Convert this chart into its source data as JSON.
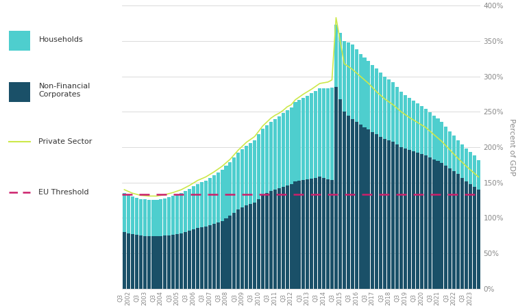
{
  "nfc_color": "#1a5068",
  "households_color": "#4ecece",
  "private_sector_color": "#cce84a",
  "eu_threshold_color": "#cc1f6a",
  "eu_threshold": 133,
  "ylabel": "Percent of GDP",
  "ylim": [
    0,
    400
  ],
  "yticks": [
    0,
    50,
    100,
    150,
    200,
    250,
    300,
    350,
    400
  ],
  "background_color": "#ffffff",
  "grid_color": "#cccccc",
  "nfc_kp_idx": [
    0,
    2,
    4,
    6,
    8,
    10,
    12,
    14,
    16,
    18,
    20,
    22,
    24,
    26,
    28,
    30,
    32,
    34,
    36,
    37,
    38,
    39,
    40,
    41,
    42,
    44,
    46,
    48,
    50,
    51,
    52,
    54,
    56,
    58,
    60,
    62,
    64,
    66,
    68,
    70,
    72,
    74,
    76,
    78,
    80,
    82,
    84,
    86,
    87
  ],
  "nfc_kp_val": [
    80,
    77,
    75,
    74,
    74,
    75,
    76,
    78,
    82,
    86,
    88,
    92,
    96,
    103,
    112,
    118,
    122,
    132,
    138,
    140,
    142,
    144,
    146,
    148,
    152,
    154,
    156,
    158,
    155,
    154,
    285,
    250,
    240,
    232,
    225,
    218,
    212,
    208,
    200,
    196,
    192,
    188,
    183,
    178,
    170,
    162,
    152,
    144,
    140
  ],
  "hh_kp_idx": [
    0,
    2,
    4,
    6,
    8,
    10,
    12,
    14,
    16,
    18,
    20,
    22,
    24,
    26,
    28,
    30,
    32,
    34,
    36,
    37,
    38,
    39,
    40,
    41,
    42,
    44,
    46,
    48,
    50,
    51,
    52,
    54,
    56,
    58,
    60,
    62,
    64,
    66,
    68,
    70,
    72,
    74,
    76,
    78,
    80,
    82,
    84,
    86,
    87
  ],
  "hh_kp_val": [
    55,
    53,
    52,
    52,
    52,
    53,
    55,
    57,
    59,
    62,
    65,
    68,
    72,
    76,
    80,
    84,
    88,
    94,
    98,
    100,
    102,
    104,
    106,
    108,
    112,
    116,
    120,
    125,
    128,
    130,
    88,
    100,
    105,
    100,
    97,
    93,
    88,
    84,
    78,
    74,
    70,
    66,
    62,
    58,
    52,
    48,
    46,
    44,
    42
  ],
  "ps_kp_idx": [
    0,
    2,
    4,
    6,
    8,
    10,
    12,
    14,
    16,
    18,
    20,
    22,
    24,
    26,
    28,
    30,
    32,
    34,
    36,
    37,
    38,
    39,
    40,
    41,
    42,
    44,
    46,
    48,
    50,
    51,
    52,
    54,
    56,
    58,
    60,
    62,
    64,
    66,
    68,
    70,
    72,
    74,
    76,
    78,
    80,
    82,
    84,
    86,
    87
  ],
  "ps_kp_val": [
    140,
    135,
    132,
    131,
    131,
    133,
    136,
    140,
    146,
    153,
    158,
    165,
    173,
    183,
    196,
    207,
    215,
    230,
    241,
    245,
    248,
    252,
    257,
    260,
    267,
    275,
    282,
    290,
    292,
    295,
    383,
    318,
    310,
    300,
    290,
    278,
    268,
    260,
    250,
    242,
    235,
    228,
    218,
    208,
    196,
    184,
    173,
    163,
    158
  ]
}
